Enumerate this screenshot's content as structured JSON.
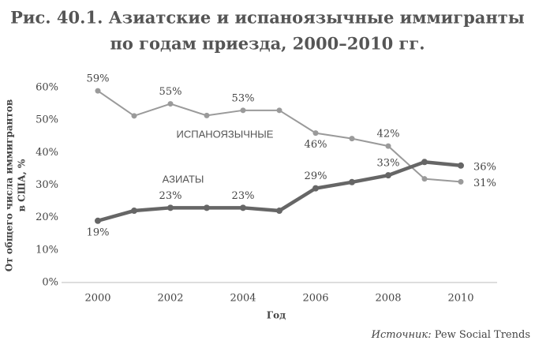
{
  "chart_data": {
    "type": "line",
    "title": [
      "Рис. 40.1. Азиатские и испаноязычные иммигранты",
      "по годам приезда, 2000–2010 гг."
    ],
    "y_label": [
      "От общего числа иммигрантов",
      "в США, %"
    ],
    "x_label": "Год",
    "source": {
      "prefix": "Источник:",
      "text": "Pew Social Trends"
    },
    "x": [
      2000,
      2001,
      2002,
      2003,
      2004,
      2005,
      2006,
      2007,
      2008,
      2009,
      2010
    ],
    "series": [
      {
        "name": "ИСПАНОЯЗЫЧНЫЕ",
        "color": "#9a9a9a",
        "width": 2,
        "values": [
          59,
          51.3,
          55,
          51.4,
          53,
          53,
          46,
          44.3,
          42,
          31.9,
          31
        ],
        "value_labels": [
          "59%",
          null,
          "55%",
          null,
          "53%",
          null,
          "46%",
          null,
          "42%",
          null,
          "31%"
        ]
      },
      {
        "name": "АЗИАТЫ",
        "color": "#666666",
        "width": 4.5,
        "values": [
          19,
          22.1,
          23,
          23,
          23,
          22.1,
          29,
          30.9,
          33,
          37.1,
          36
        ],
        "value_labels": [
          "19%",
          null,
          "23%",
          null,
          "23%",
          null,
          "29%",
          null,
          "33%",
          null,
          "36%"
        ]
      }
    ],
    "xlim": [
      1999,
      2011
    ],
    "xticks": [
      2000,
      2002,
      2004,
      2006,
      2008,
      2010
    ],
    "ylim": [
      0,
      60
    ],
    "yticks": [
      {
        "value": 0,
        "label": "0%"
      },
      {
        "value": 10,
        "label": "10%"
      },
      {
        "value": 20,
        "label": "20%"
      },
      {
        "value": 30,
        "label": "30%"
      },
      {
        "value": 40,
        "label": "40%"
      },
      {
        "value": 50,
        "label": "50%"
      },
      {
        "value": 60,
        "label": "60%"
      }
    ],
    "grid": false
  }
}
